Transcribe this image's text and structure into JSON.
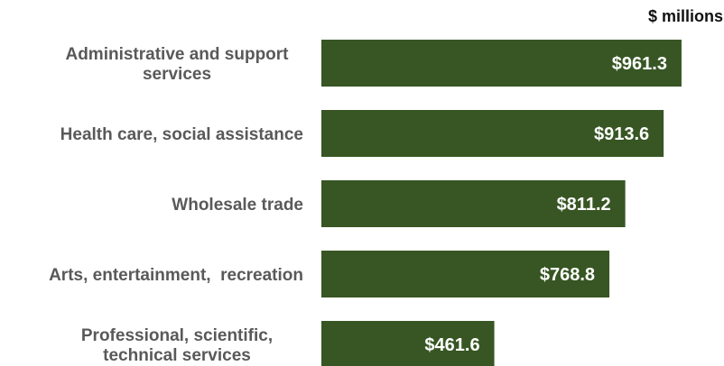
{
  "chart_data": {
    "type": "bar",
    "orientation": "horizontal",
    "unit_label": "$ millions",
    "categories": [
      [
        "Administrative and support",
        "services"
      ],
      [
        "Health care, social assistance"
      ],
      [
        "Wholesale trade"
      ],
      [
        "Arts, entertainment,  recreation"
      ],
      [
        "Professional, scientific,",
        "technical services"
      ]
    ],
    "values": [
      961.3,
      913.6,
      811.2,
      768.8,
      461.6
    ],
    "value_labels": [
      "$961.3",
      "$913.6",
      "$811.2",
      "$768.8",
      "$461.6"
    ],
    "xlim": [
      0,
      1000
    ],
    "bar_color": "#375623",
    "label_color": "#595959",
    "value_label_color": "#ffffff",
    "grid": false,
    "legend": "none"
  }
}
